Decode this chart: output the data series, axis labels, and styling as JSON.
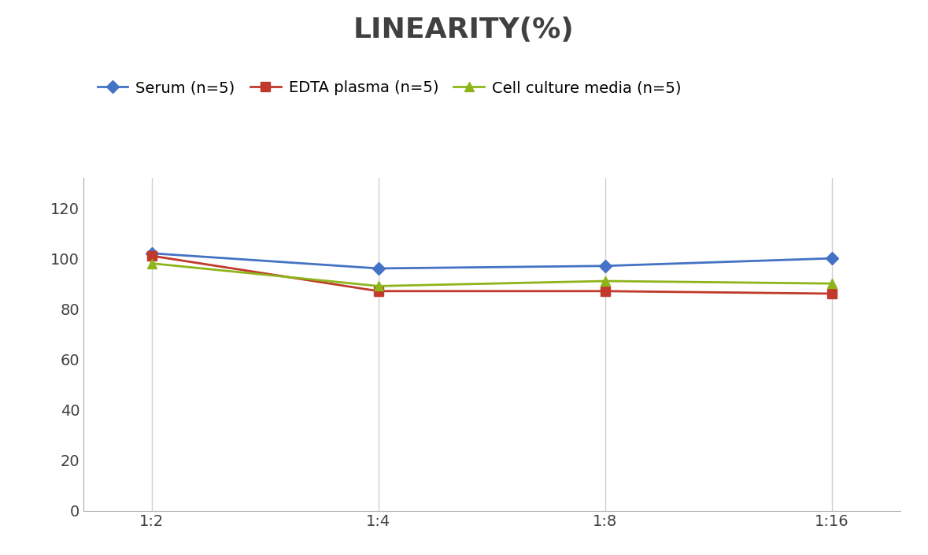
{
  "title": "LINEARITY(%)",
  "x_labels": [
    "1:2",
    "1:4",
    "1:8",
    "1:16"
  ],
  "x_positions": [
    0,
    1,
    2,
    3
  ],
  "series": [
    {
      "label": "Serum (n=5)",
      "values": [
        102,
        96,
        97,
        100
      ],
      "color": "#4472C4",
      "marker": "D",
      "markersize": 8,
      "linewidth": 2
    },
    {
      "label": "EDTA plasma (n=5)",
      "values": [
        101,
        87,
        87,
        86
      ],
      "color": "#C0392B",
      "marker": "s",
      "markersize": 8,
      "linewidth": 2
    },
    {
      "label": "Cell culture media (n=5)",
      "values": [
        98,
        89,
        91,
        90
      ],
      "color": "#8DB51A",
      "marker": "^",
      "markersize": 8,
      "linewidth": 2
    }
  ],
  "ylim": [
    0,
    132
  ],
  "yticks": [
    0,
    20,
    40,
    60,
    80,
    100,
    120
  ],
  "background_color": "#FFFFFF",
  "title_fontsize": 26,
  "tick_fontsize": 14,
  "legend_fontsize": 14,
  "grid_color": "#D0D0D0",
  "grid_linewidth": 1
}
